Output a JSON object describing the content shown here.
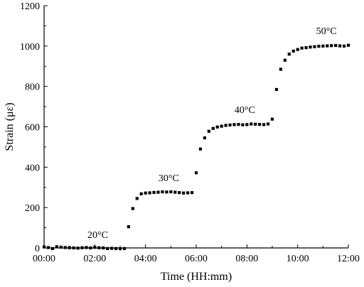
{
  "chart_data": {
    "type": "scatter",
    "title": "",
    "xlabel": "Time (HH:mm)",
    "ylabel": "Strain (με)",
    "xlim": [
      0,
      720
    ],
    "ylim": [
      0,
      1200
    ],
    "x_ticks": [
      0,
      120,
      240,
      360,
      480,
      600,
      720
    ],
    "x_tick_labels": [
      "00:00",
      "02:00",
      "04:00",
      "06:00",
      "08:00",
      "10:00",
      "12:00"
    ],
    "y_ticks": [
      0,
      200,
      400,
      600,
      800,
      1000,
      1200
    ],
    "y_tick_labels": [
      "0",
      "200",
      "400",
      "600",
      "800",
      "1000",
      "1200"
    ],
    "grid": false,
    "marker_color": "#000000",
    "series": [
      {
        "x": [
          0,
          10,
          20,
          30,
          40,
          50,
          60,
          70,
          80,
          90,
          100,
          110,
          120,
          130,
          140,
          150,
          160,
          170,
          180,
          190,
          200,
          210,
          220,
          230,
          240,
          250,
          260,
          270,
          280,
          290,
          300,
          310,
          320,
          330,
          340,
          350,
          360,
          370,
          380,
          390,
          400,
          410,
          420,
          430,
          440,
          450,
          460,
          470,
          480,
          490,
          500,
          510,
          520,
          530,
          540,
          550,
          560,
          570,
          580,
          590,
          600,
          610,
          620,
          630,
          640,
          650,
          660,
          670,
          680,
          690,
          700,
          710,
          720
        ],
        "y": [
          5,
          2,
          -3,
          6,
          4,
          2,
          1,
          0,
          -1,
          1,
          2,
          0,
          3,
          1,
          0,
          -3,
          -2,
          -3,
          -4,
          -3,
          105,
          195,
          245,
          268,
          272,
          273,
          275,
          276,
          278,
          277,
          278,
          276,
          274,
          272,
          273,
          274,
          372,
          490,
          545,
          578,
          592,
          599,
          603,
          607,
          609,
          611,
          612,
          610,
          611,
          614,
          613,
          612,
          611,
          614,
          638,
          785,
          885,
          930,
          960,
          975,
          983,
          990,
          992,
          995,
          997,
          999,
          1000,
          1001,
          1002,
          1003,
          1001,
          1000,
          1004
        ]
      }
    ],
    "annotations": [
      {
        "text": "20°C",
        "x": 127,
        "y": 50
      },
      {
        "text": "30°C",
        "x": 295,
        "y": 330
      },
      {
        "text": "40°C",
        "x": 475,
        "y": 668
      },
      {
        "text": "50°C",
        "x": 668,
        "y": 1060
      }
    ]
  }
}
